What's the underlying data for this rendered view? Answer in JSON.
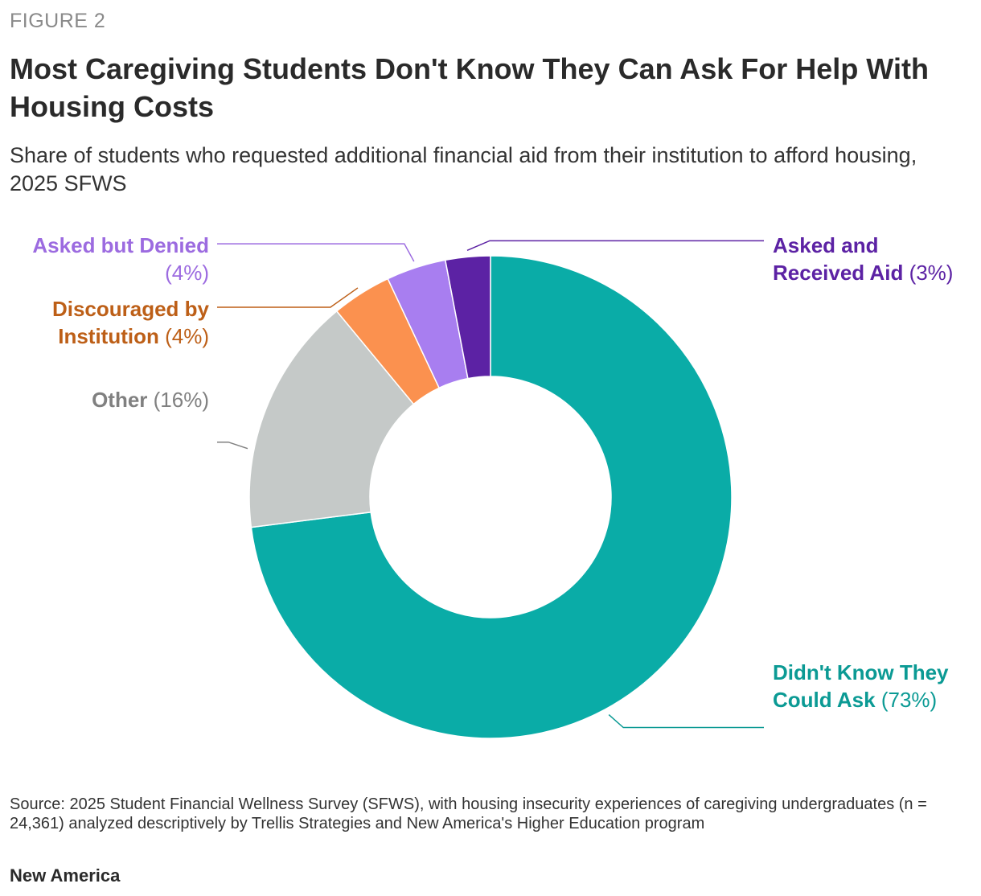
{
  "figure_label": "FIGURE 2",
  "title": "Most Caregiving Students Don't Know They Can Ask For Help With Housing Costs",
  "subtitle": "Share of students who requested additional financial aid from their institution to afford housing, 2025 SFWS",
  "chart_data": {
    "type": "pie",
    "donut": true,
    "slices": [
      {
        "name": "Didn't Know They Could Ask",
        "value": 73,
        "label": "(73%)",
        "color": "#0aaca7",
        "label_color": "#0b9a94"
      },
      {
        "name": "Other",
        "value": 16,
        "label": "(16%)",
        "color": "#c5c9c8",
        "label_color": "#808080"
      },
      {
        "name": "Discouraged by Institution",
        "value": 4,
        "label": "(4%)",
        "color": "#fb914f",
        "label_color": "#bd5f17"
      },
      {
        "name": "Asked but Denied",
        "value": 4,
        "label": "(4%)",
        "color": "#a87ef0",
        "label_color": "#9c6be0"
      },
      {
        "name": "Asked and Received Aid",
        "value": 3,
        "label": "(3%)",
        "color": "#5c22a4",
        "label_color": "#5c22a4"
      }
    ]
  },
  "labels": {
    "received_line1": "Asked and",
    "received_line2": "Received Aid",
    "denied_line1": "Asked but Denied",
    "discouraged_line1": "Discouraged by",
    "discouraged_line2": "Institution",
    "other": "Other",
    "didnt_line1": "Didn't Know They",
    "didnt_line2": "Could Ask"
  },
  "source": "Source: 2025 Student Financial Wellness Survey (SFWS), with housing insecurity experiences of caregiving undergraduates (n = 24,361) analyzed descriptively by Trellis Strategies and New America's Higher Education program",
  "brand": "New America"
}
